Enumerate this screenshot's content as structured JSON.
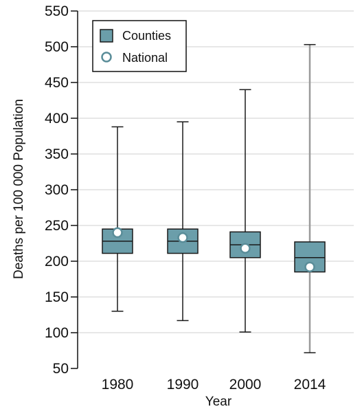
{
  "chart_data": {
    "type": "box",
    "title": "",
    "xlabel": "Year",
    "ylabel": "Deaths per 100 000 Population",
    "ylim": [
      50,
      550
    ],
    "yticks": [
      50,
      100,
      150,
      200,
      250,
      300,
      350,
      400,
      450,
      500,
      550
    ],
    "ytick_labels": [
      "50",
      "100",
      "150",
      "200",
      "250",
      "300",
      "350",
      "400",
      "450",
      "500",
      "550"
    ],
    "categories": [
      "1980",
      "1990",
      "2000",
      "2014"
    ],
    "grid": "horizontal",
    "legend_position": "top-left",
    "legend": [
      {
        "label": "Counties",
        "marker": "box"
      },
      {
        "label": "National",
        "marker": "circle"
      }
    ],
    "series": [
      {
        "name": "Counties",
        "min": [
          130,
          117,
          101,
          72
        ],
        "q1": [
          211,
          211,
          205,
          185
        ],
        "median": [
          228,
          228,
          223,
          205
        ],
        "q3": [
          245,
          245,
          241,
          227
        ],
        "max": [
          388,
          395,
          440,
          503
        ]
      },
      {
        "name": "National",
        "values": [
          240,
          233,
          218,
          192
        ]
      }
    ],
    "colors": {
      "box_fill": "#6b9eaa",
      "box_edge": "#1a1a1a",
      "whisker": "#1a1a1a",
      "whisker_2014": "#9a9a9a",
      "national_fill": "#ffffff",
      "national_edge": "#5a8d99",
      "grid": "#cfcfcf",
      "axis": "#111111"
    }
  }
}
